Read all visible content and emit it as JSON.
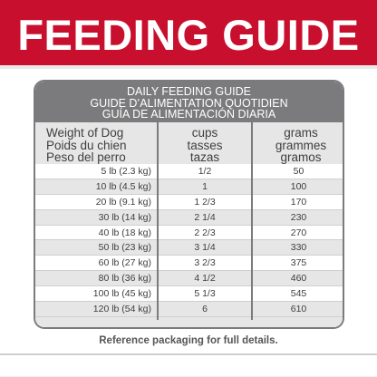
{
  "banner": {
    "title": "FEEDING GUIDE",
    "color": "#c8102e"
  },
  "card": {
    "header_lines": [
      "DAILY FEEDING GUIDE",
      "GUIDE D’ALIMENTATION QUOTIDIEN",
      "GUÍA DE ALIMENTACIÓN DIARIA"
    ],
    "columns": {
      "weight": [
        "Weight of Dog",
        "Poids du chien",
        "Peso del perro"
      ],
      "cups": [
        "cups",
        "tasses",
        "tazas"
      ],
      "grams": [
        "grams",
        "grammes",
        "gramos"
      ]
    },
    "rows": [
      {
        "weight": "5 lb (2.3 kg)",
        "cups": "1/2",
        "grams": "50"
      },
      {
        "weight": "10 lb (4.5 kg)",
        "cups": "1",
        "grams": "100"
      },
      {
        "weight": "20 lb (9.1 kg)",
        "cups": "1 2/3",
        "grams": "170"
      },
      {
        "weight": "30 lb (14 kg)",
        "cups": "2 1/4",
        "grams": "230"
      },
      {
        "weight": "40 lb (18 kg)",
        "cups": "2 2/3",
        "grams": "270"
      },
      {
        "weight": "50 lb (23 kg)",
        "cups": "3 1/4",
        "grams": "330"
      },
      {
        "weight": "60 lb (27 kg)",
        "cups": "3 2/3",
        "grams": "375"
      },
      {
        "weight": "80 lb (36 kg)",
        "cups": "4 1/2",
        "grams": "460"
      },
      {
        "weight": "100 lb (45 kg)",
        "cups": "5 1/3",
        "grams": "545"
      },
      {
        "weight": "120 lb (54 kg)",
        "cups": "6",
        "grams": "610"
      }
    ]
  },
  "footer": {
    "note": "Reference packaging for full details."
  }
}
